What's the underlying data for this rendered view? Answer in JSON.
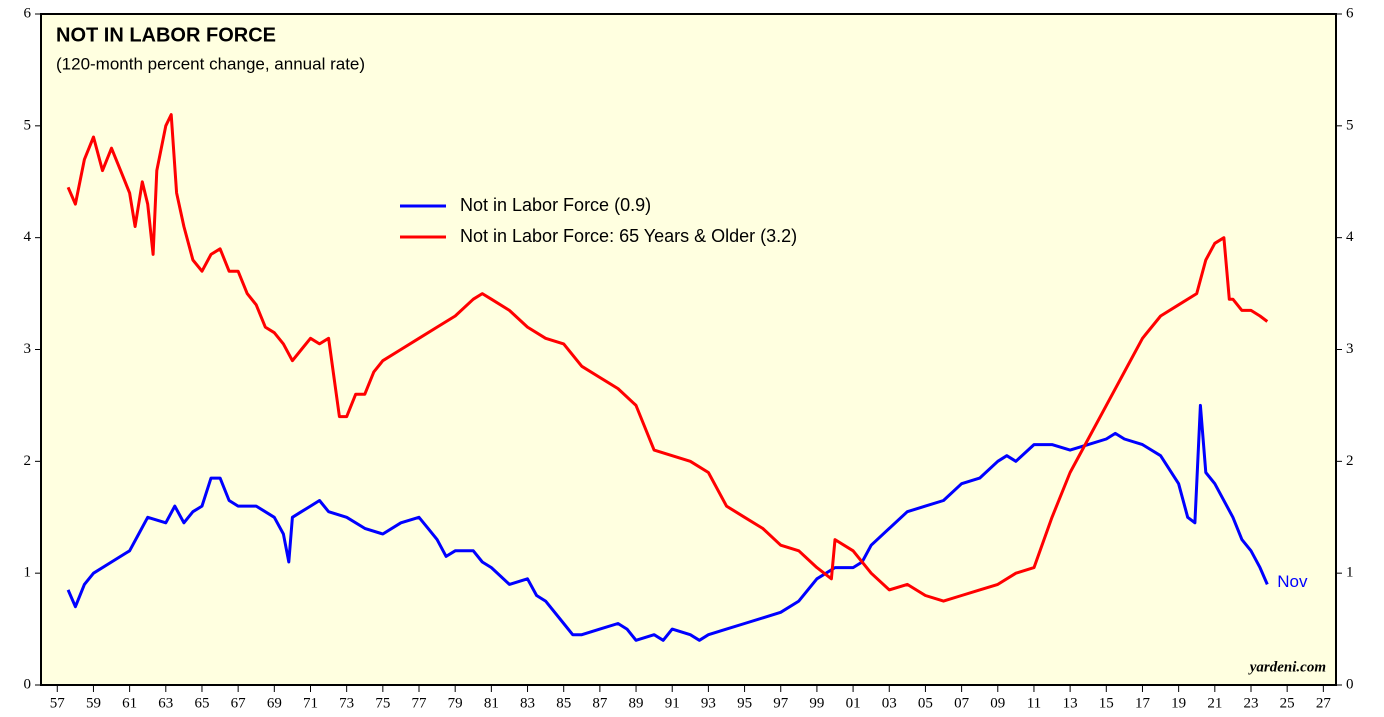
{
  "chart_data": {
    "type": "line",
    "title": "NOT IN LABOR FORCE",
    "subtitle": "(120-month percent change, annual rate)",
    "annotations": [
      "Nov",
      "yardeni.com"
    ],
    "xlim": [
      1956.1,
      2027.7
    ],
    "ylim": [
      0,
      6
    ],
    "y2lim": [
      0,
      6
    ],
    "xticks": [
      {
        "value": 1957,
        "label": "57"
      },
      {
        "value": 1959,
        "label": "59"
      },
      {
        "value": 1961,
        "label": "61"
      },
      {
        "value": 1963,
        "label": "63"
      },
      {
        "value": 1965,
        "label": "65"
      },
      {
        "value": 1967,
        "label": "67"
      },
      {
        "value": 1969,
        "label": "69"
      },
      {
        "value": 1971,
        "label": "71"
      },
      {
        "value": 1973,
        "label": "73"
      },
      {
        "value": 1975,
        "label": "75"
      },
      {
        "value": 1977,
        "label": "77"
      },
      {
        "value": 1979,
        "label": "79"
      },
      {
        "value": 1981,
        "label": "81"
      },
      {
        "value": 1983,
        "label": "83"
      },
      {
        "value": 1985,
        "label": "85"
      },
      {
        "value": 1987,
        "label": "87"
      },
      {
        "value": 1989,
        "label": "89"
      },
      {
        "value": 1991,
        "label": "91"
      },
      {
        "value": 1993,
        "label": "93"
      },
      {
        "value": 1995,
        "label": "95"
      },
      {
        "value": 1997,
        "label": "97"
      },
      {
        "value": 1999,
        "label": "99"
      },
      {
        "value": 2001,
        "label": "01"
      },
      {
        "value": 2003,
        "label": "03"
      },
      {
        "value": 2005,
        "label": "05"
      },
      {
        "value": 2007,
        "label": "07"
      },
      {
        "value": 2009,
        "label": "09"
      },
      {
        "value": 2011,
        "label": "11"
      },
      {
        "value": 2013,
        "label": "13"
      },
      {
        "value": 2015,
        "label": "15"
      },
      {
        "value": 2017,
        "label": "17"
      },
      {
        "value": 2019,
        "label": "19"
      },
      {
        "value": 2021,
        "label": "21"
      },
      {
        "value": 2023,
        "label": "23"
      },
      {
        "value": 2025,
        "label": "25"
      },
      {
        "value": 2027,
        "label": "27"
      }
    ],
    "yticks": [
      0,
      1,
      2,
      3,
      4,
      5,
      6
    ],
    "y2ticks": [
      0,
      1,
      2,
      3,
      4,
      5,
      6
    ],
    "legend": "upper center",
    "series": [
      {
        "name": "Not in Labor Force (0.9)",
        "color": "#0000ff",
        "x": [
          1957.6,
          1958,
          1958.5,
          1959,
          1960,
          1961,
          1961.5,
          1962,
          1963,
          1963.5,
          1964,
          1964.5,
          1965,
          1965.5,
          1966,
          1966.5,
          1967,
          1968,
          1969,
          1969.5,
          1969.8,
          1970,
          1970.5,
          1971,
          1971.5,
          1972,
          1973,
          1974,
          1975,
          1976,
          1977,
          1977.5,
          1978,
          1978.5,
          1979,
          1980,
          1980.5,
          1981,
          1982,
          1983,
          1983.5,
          1984,
          1985,
          1985.5,
          1986,
          1987,
          1988,
          1988.5,
          1989,
          1990,
          1990.5,
          1991,
          1992,
          1992.5,
          1993,
          1994,
          1995,
          1996,
          1997,
          1998,
          1999,
          2000,
          2001,
          2001.5,
          2002,
          2003,
          2004,
          2005,
          2006,
          2007,
          2008,
          2009,
          2009.5,
          2010,
          2011,
          2012,
          2013,
          2014,
          2015,
          2015.5,
          2016,
          2017,
          2018,
          2019,
          2019.5,
          2019.9,
          2020.2,
          2020.5,
          2021,
          2022,
          2022.5,
          2023,
          2023.5,
          2023.9
        ],
        "values": [
          0.85,
          0.7,
          0.9,
          1.0,
          1.1,
          1.2,
          1.35,
          1.5,
          1.45,
          1.6,
          1.45,
          1.55,
          1.6,
          1.85,
          1.85,
          1.65,
          1.6,
          1.6,
          1.5,
          1.35,
          1.1,
          1.5,
          1.55,
          1.6,
          1.65,
          1.55,
          1.5,
          1.4,
          1.35,
          1.45,
          1.5,
          1.4,
          1.3,
          1.15,
          1.2,
          1.2,
          1.1,
          1.05,
          0.9,
          0.95,
          0.8,
          0.75,
          0.55,
          0.45,
          0.45,
          0.5,
          0.55,
          0.5,
          0.4,
          0.45,
          0.4,
          0.5,
          0.45,
          0.4,
          0.45,
          0.5,
          0.55,
          0.6,
          0.65,
          0.75,
          0.95,
          1.05,
          1.05,
          1.1,
          1.25,
          1.4,
          1.55,
          1.6,
          1.65,
          1.8,
          1.85,
          2.0,
          2.05,
          2.0,
          2.15,
          2.15,
          2.1,
          2.15,
          2.2,
          2.25,
          2.2,
          2.15,
          2.05,
          1.8,
          1.5,
          1.45,
          2.5,
          1.9,
          1.8,
          1.5,
          1.3,
          1.2,
          1.05,
          0.9
        ]
      },
      {
        "name": "Not in Labor Force: 65 Years & Older (3.2)",
        "color": "#ff0000",
        "x": [
          1957.6,
          1958,
          1958.5,
          1959,
          1959.5,
          1960,
          1960.5,
          1961,
          1961.3,
          1961.7,
          1962,
          1962.3,
          1962.5,
          1963,
          1963.3,
          1963.6,
          1964,
          1964.5,
          1965,
          1965.5,
          1966,
          1966.5,
          1967,
          1967.5,
          1968,
          1968.5,
          1969,
          1969.5,
          1970,
          1970.5,
          1971,
          1971.5,
          1972,
          1972.3,
          1972.6,
          1973,
          1973.5,
          1974,
          1974.5,
          1975,
          1976,
          1977,
          1978,
          1979,
          1980,
          1980.5,
          1981,
          1982,
          1983,
          1984,
          1985,
          1986,
          1987,
          1988,
          1989,
          1990,
          1991,
          1992,
          1993,
          1994,
          1995,
          1996,
          1997,
          1998,
          1999,
          1999.8,
          2000,
          2001,
          2002,
          2003,
          2004,
          2005,
          2006,
          2007,
          2008,
          2009,
          2010,
          2011,
          2012,
          2013,
          2014,
          2015,
          2016,
          2017,
          2018,
          2019,
          2020,
          2020.5,
          2021,
          2021.5,
          2021.8,
          2022,
          2022.5,
          2023,
          2023.5,
          2023.9
        ],
        "values": [
          4.45,
          4.3,
          4.7,
          4.9,
          4.6,
          4.8,
          4.6,
          4.4,
          4.1,
          4.5,
          4.3,
          3.85,
          4.6,
          5.0,
          5.1,
          4.4,
          4.1,
          3.8,
          3.7,
          3.85,
          3.9,
          3.7,
          3.7,
          3.5,
          3.4,
          3.2,
          3.15,
          3.05,
          2.9,
          3.0,
          3.1,
          3.05,
          3.1,
          2.75,
          2.4,
          2.4,
          2.6,
          2.6,
          2.8,
          2.9,
          3.0,
          3.1,
          3.2,
          3.3,
          3.45,
          3.5,
          3.45,
          3.35,
          3.2,
          3.1,
          3.05,
          2.85,
          2.75,
          2.65,
          2.5,
          2.1,
          2.05,
          2.0,
          1.9,
          1.6,
          1.5,
          1.4,
          1.25,
          1.2,
          1.05,
          0.95,
          1.3,
          1.2,
          1.0,
          0.85,
          0.9,
          0.8,
          0.75,
          0.8,
          0.85,
          0.9,
          1.0,
          1.05,
          1.5,
          1.9,
          2.2,
          2.5,
          2.8,
          3.1,
          3.3,
          3.4,
          3.5,
          3.8,
          3.95,
          4.0,
          3.45,
          3.45,
          3.35,
          3.35,
          3.3,
          3.25
        ]
      }
    ]
  }
}
